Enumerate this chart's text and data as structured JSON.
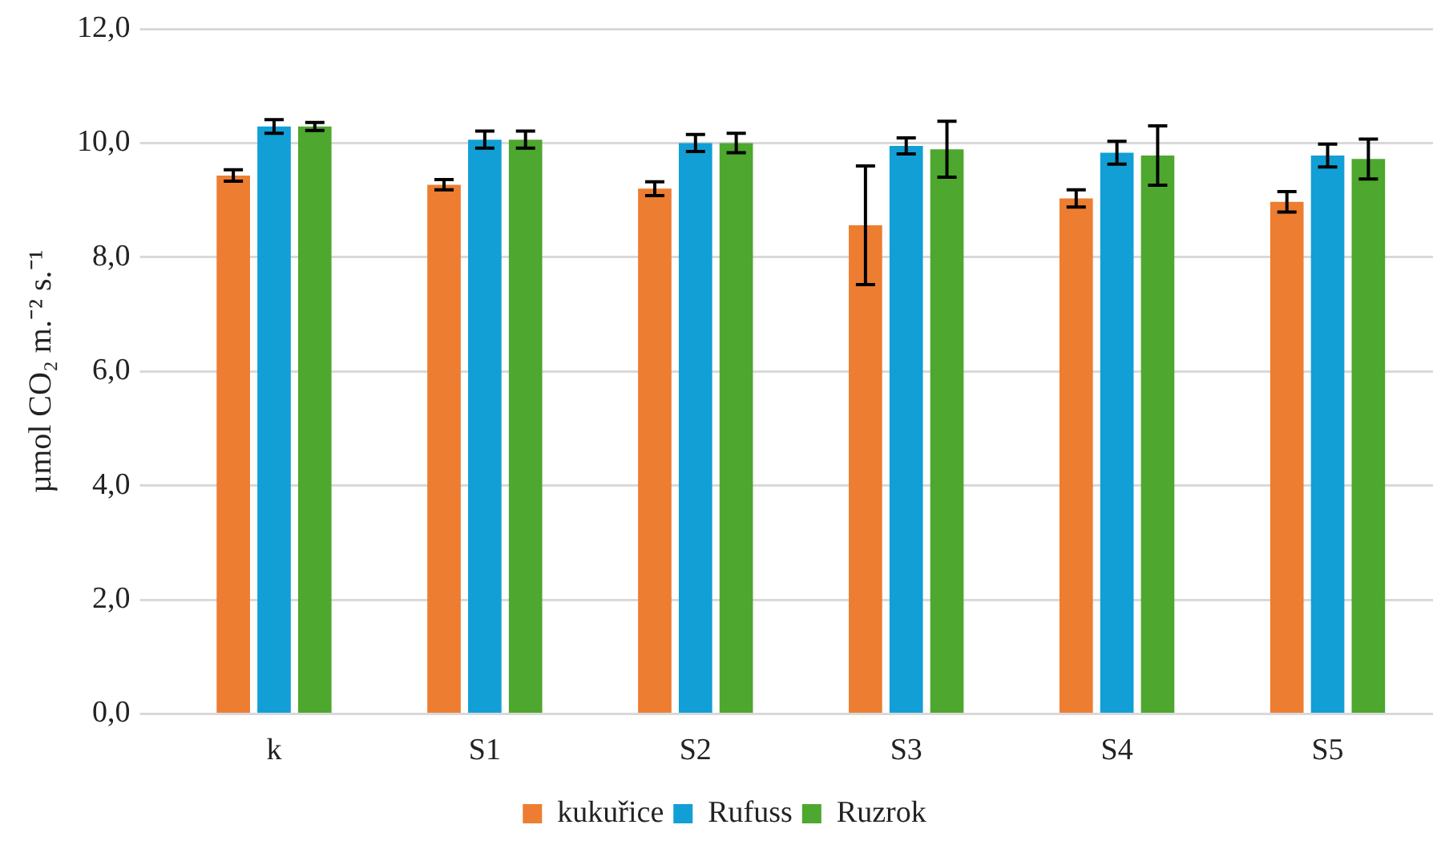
{
  "chart_data": {
    "type": "bar",
    "ylabel": "µmol CO₂ m.⁻² s.⁻¹",
    "categories": [
      "k",
      "S1",
      "S2",
      "S3",
      "S4",
      "S5"
    ],
    "series": [
      {
        "name": "kukuřice",
        "color": "#ed7d31",
        "values": [
          9.43,
          9.27,
          9.2,
          8.56,
          9.03,
          8.97
        ],
        "errors": [
          0.1,
          0.09,
          0.12,
          1.04,
          0.15,
          0.18
        ]
      },
      {
        "name": "Rufuss",
        "color": "#119fd6",
        "values": [
          10.29,
          10.06,
          10.0,
          9.95,
          9.83,
          9.78
        ],
        "errors": [
          0.12,
          0.15,
          0.15,
          0.14,
          0.2,
          0.2
        ]
      },
      {
        "name": "Ruzrok",
        "color": "#4ea72e",
        "values": [
          10.29,
          10.06,
          10.0,
          9.89,
          9.78,
          9.72
        ],
        "errors": [
          0.07,
          0.15,
          0.17,
          0.49,
          0.52,
          0.35
        ]
      }
    ],
    "ylim": [
      0,
      12
    ],
    "yticks": [
      {
        "value": 0,
        "label": "0,0"
      },
      {
        "value": 2,
        "label": "2,0"
      },
      {
        "value": 4,
        "label": "4,0"
      },
      {
        "value": 6,
        "label": "6,0"
      },
      {
        "value": 8,
        "label": "8,0"
      },
      {
        "value": 10,
        "label": "10,0"
      },
      {
        "value": 12,
        "label": "12,0"
      }
    ],
    "grid": "y",
    "legend": "bottom"
  }
}
